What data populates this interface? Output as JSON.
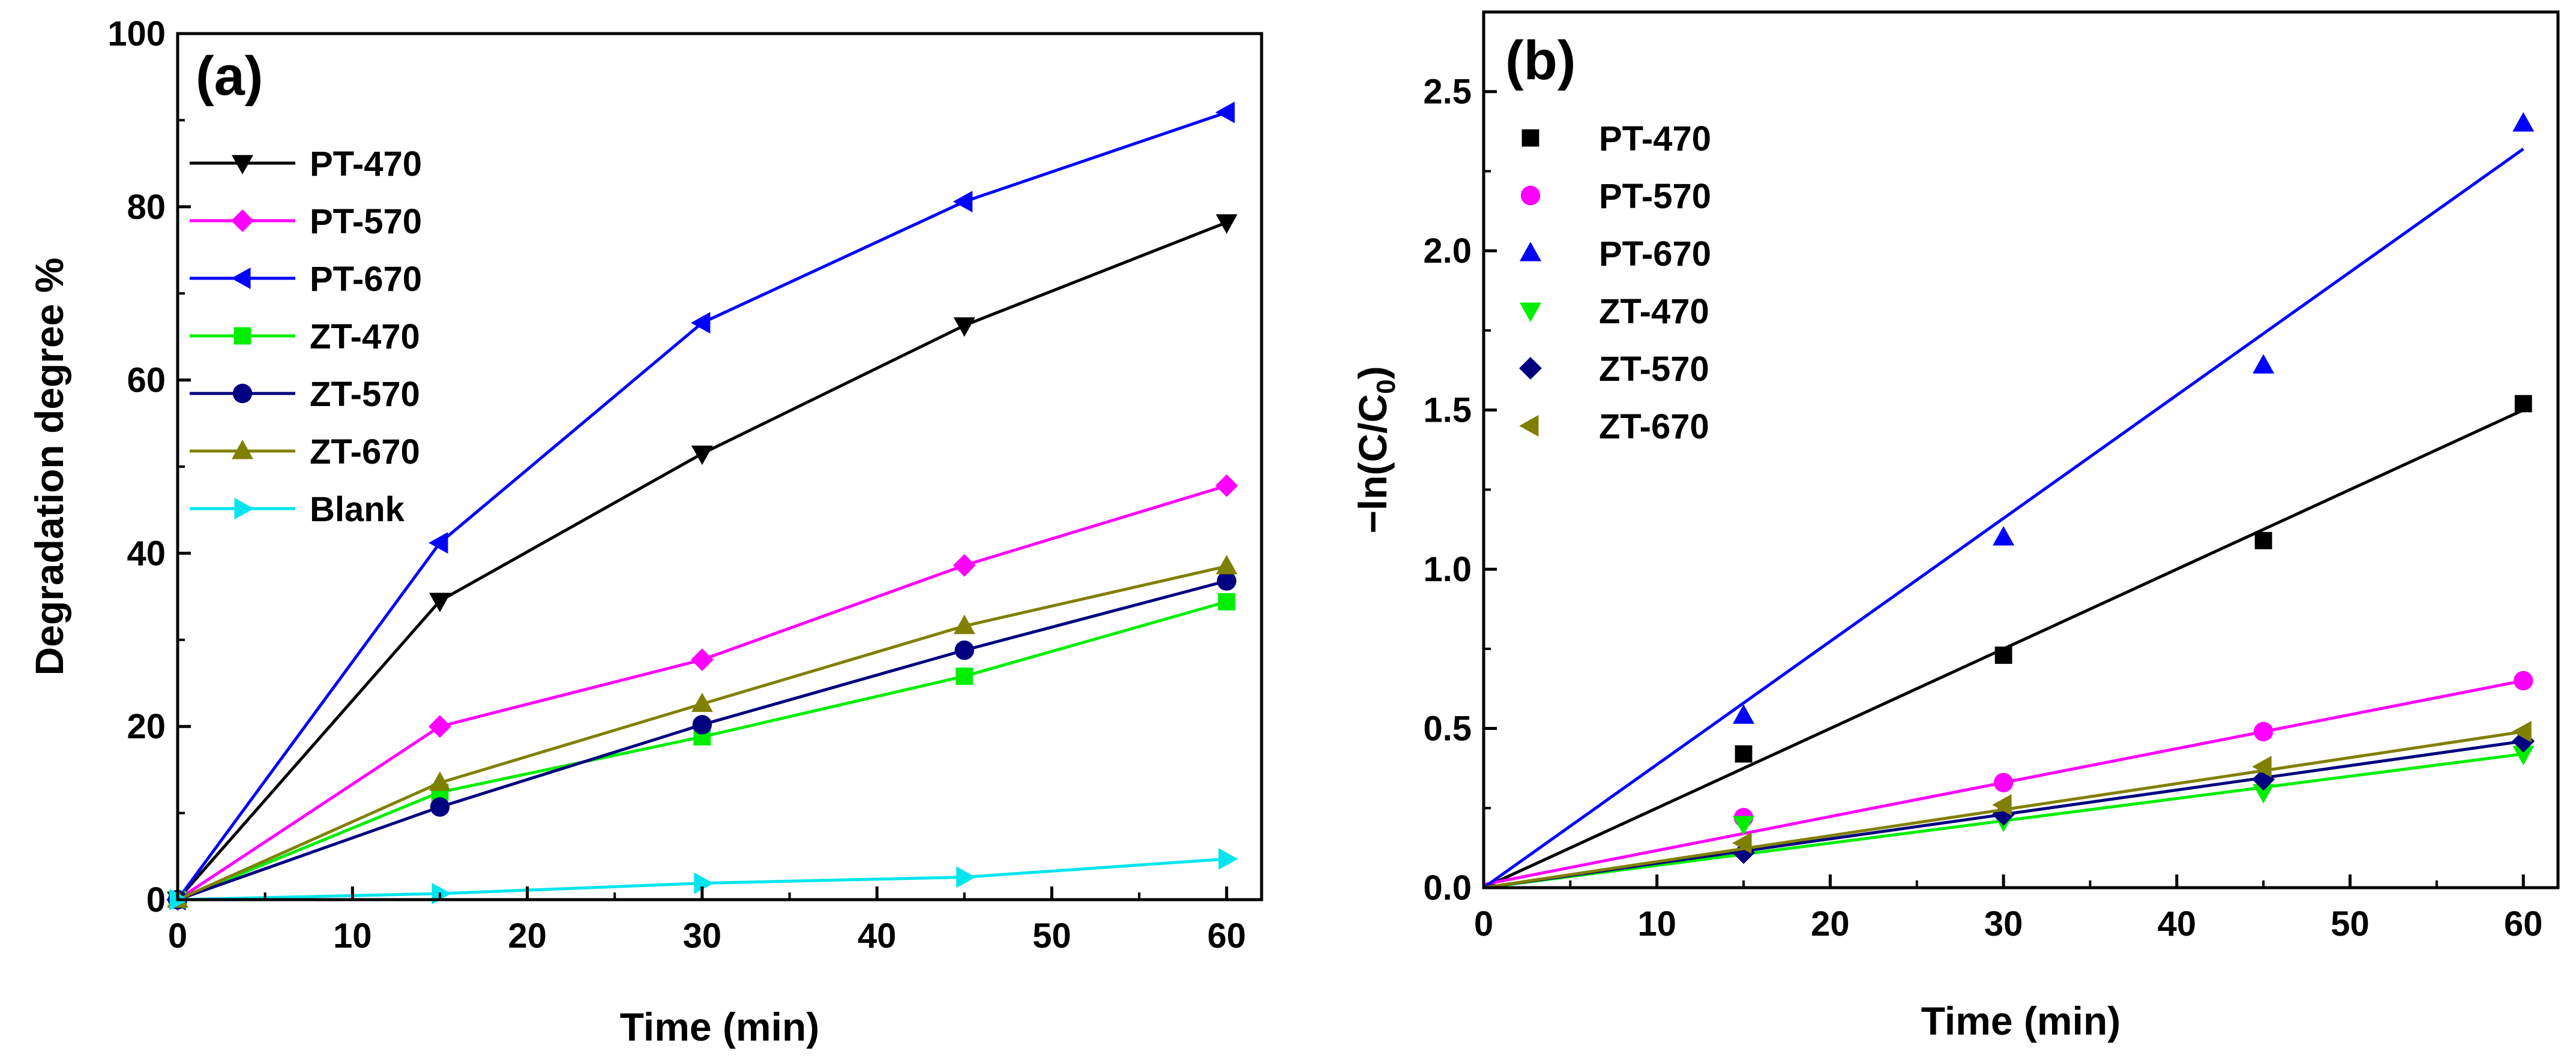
{
  "chart_data": [
    {
      "type": "line",
      "panel_label": "(a)",
      "xlabel": "Time (min)",
      "ylabel": "Degradation degree %",
      "xlim": [
        0,
        62
      ],
      "ylim": [
        0,
        100
      ],
      "xticks": [
        0,
        10,
        20,
        30,
        40,
        50,
        60
      ],
      "yticks": [
        0,
        20,
        40,
        60,
        80,
        100
      ],
      "legend_position": "top-left",
      "x": [
        0,
        15,
        30,
        45,
        60
      ],
      "series": [
        {
          "name": "PT-470",
          "color": "#000000",
          "marker": "triangle-down",
          "values": [
            0,
            34.5,
            51.5,
            66.3,
            78.2
          ]
        },
        {
          "name": "PT-570",
          "color": "#ff00ff",
          "marker": "diamond",
          "values": [
            0,
            20.0,
            27.7,
            38.6,
            47.8
          ]
        },
        {
          "name": "PT-670",
          "color": "#0000ff",
          "marker": "triangle-left",
          "values": [
            0,
            41.2,
            66.6,
            80.6,
            90.9
          ]
        },
        {
          "name": "ZT-470",
          "color": "#00ee00",
          "marker": "square",
          "values": [
            0,
            12.4,
            18.8,
            25.8,
            34.4
          ]
        },
        {
          "name": "ZT-570",
          "color": "#000080",
          "marker": "circle",
          "values": [
            0,
            10.7,
            20.2,
            28.8,
            36.8
          ]
        },
        {
          "name": "ZT-670",
          "color": "#808000",
          "marker": "triangle-up",
          "values": [
            0,
            13.5,
            22.6,
            31.6,
            38.5
          ]
        },
        {
          "name": "Blank",
          "color": "#00e5ee",
          "marker": "triangle-right",
          "values": [
            0,
            0.7,
            1.9,
            2.6,
            4.7
          ]
        }
      ]
    },
    {
      "type": "scatter",
      "panel_label": "(b)",
      "xlabel": "Time (min)",
      "ylabel": "−ln(C/C₀)",
      "ylabel_main": "−ln(C/C",
      "ylabel_sub": "0",
      "ylabel_end": ")",
      "xlim": [
        0,
        62
      ],
      "ylim": [
        0,
        2.75
      ],
      "xticks": [
        0,
        10,
        20,
        30,
        40,
        50,
        60
      ],
      "yticks": [
        0.0,
        0.5,
        1.0,
        1.5,
        2.0,
        2.5
      ],
      "ytick_labels": [
        "0.0",
        "0.5",
        "1.0",
        "1.5",
        "2.0",
        "2.5"
      ],
      "legend_position": "top-left",
      "x": [
        15,
        30,
        45,
        60
      ],
      "series": [
        {
          "name": "PT-470",
          "color": "#000000",
          "marker": "square",
          "values": [
            0.42,
            0.73,
            1.09,
            1.52
          ],
          "fit_line": [
            [
              0,
              0.0
            ],
            [
              60,
              1.5
            ]
          ]
        },
        {
          "name": "PT-570",
          "color": "#ff00ff",
          "marker": "circle",
          "values": [
            0.22,
            0.33,
            0.49,
            0.65
          ],
          "fit_line": [
            [
              0,
              0.01
            ],
            [
              60,
              0.65
            ]
          ]
        },
        {
          "name": "PT-670",
          "color": "#0000ff",
          "marker": "triangle-up",
          "values": [
            0.54,
            1.1,
            1.64,
            2.4
          ],
          "fit_line": [
            [
              0,
              0.0
            ],
            [
              60,
              2.32
            ]
          ]
        },
        {
          "name": "ZT-470",
          "color": "#00ee00",
          "marker": "triangle-down",
          "values": [
            0.2,
            0.21,
            0.3,
            0.42
          ],
          "fit_line": [
            [
              0,
              0.0
            ],
            [
              60,
              0.42
            ]
          ]
        },
        {
          "name": "ZT-570",
          "color": "#000080",
          "marker": "diamond",
          "values": [
            0.11,
            0.23,
            0.34,
            0.46
          ],
          "fit_line": [
            [
              0,
              0.0
            ],
            [
              60,
              0.46
            ]
          ]
        },
        {
          "name": "ZT-670",
          "color": "#808000",
          "marker": "triangle-left",
          "values": [
            0.14,
            0.26,
            0.38,
            0.49
          ],
          "fit_line": [
            [
              0,
              0.0
            ],
            [
              60,
              0.49
            ]
          ]
        }
      ]
    }
  ]
}
